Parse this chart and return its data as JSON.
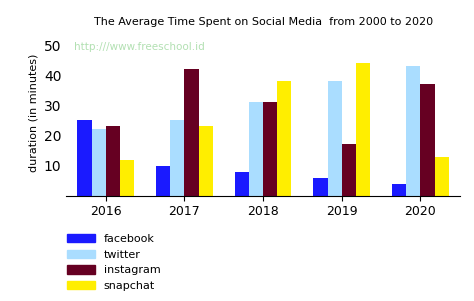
{
  "title": "The Average Time Spent on Social Media  from 2000 to 2020",
  "ylabel": "duration (in minutes)",
  "watermark": "http:///www.freeschool.id",
  "categories": [
    "2016",
    "2017",
    "2018",
    "2019",
    "2020"
  ],
  "series": {
    "facebook": [
      25,
      10,
      8,
      6,
      4
    ],
    "twitter": [
      22,
      25,
      31,
      38,
      43
    ],
    "instagram": [
      23,
      42,
      31,
      17,
      37
    ],
    "snapchat": [
      12,
      23,
      38,
      44,
      13
    ]
  },
  "colors": {
    "facebook": "#1a1aff",
    "twitter": "#aaddff",
    "instagram": "#660022",
    "snapchat": "#ffee00"
  },
  "legend_labels": [
    "facebook",
    "twitter",
    "instagram",
    "snapchat"
  ],
  "ylim": [
    0,
    55
  ],
  "yticks": [
    10,
    20,
    30,
    40,
    50
  ],
  "background_color": "#ffffff",
  "watermark_color": "#aaddaa"
}
